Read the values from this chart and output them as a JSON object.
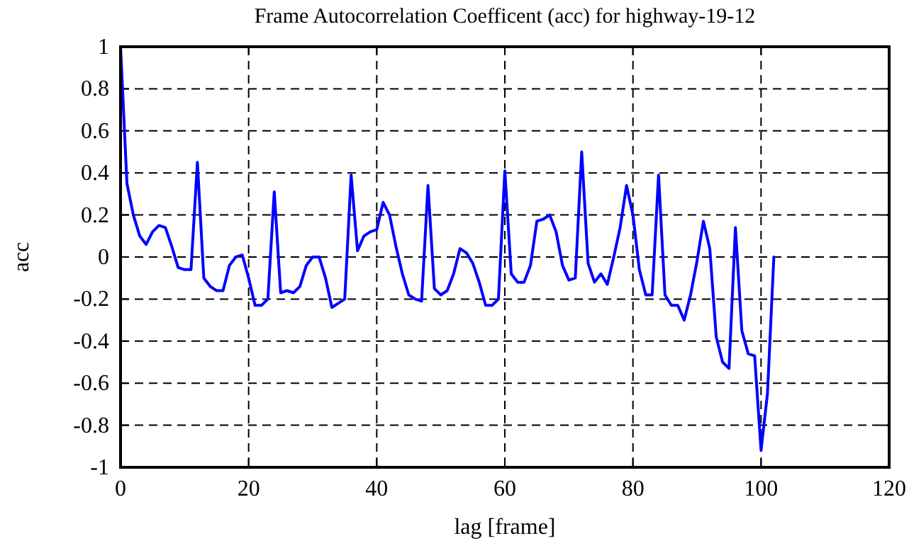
{
  "chart_data": {
    "type": "line",
    "title": "Frame Autocorrelation Coefficent (acc) for highway-19-12",
    "xlabel": "lag [frame]",
    "ylabel": "acc",
    "x": [
      0,
      1,
      2,
      3,
      4,
      5,
      6,
      7,
      8,
      9,
      10,
      11,
      12,
      13,
      14,
      15,
      16,
      17,
      18,
      19,
      20,
      21,
      22,
      23,
      24,
      25,
      26,
      27,
      28,
      29,
      30,
      31,
      32,
      33,
      34,
      35,
      36,
      37,
      38,
      39,
      40,
      41,
      42,
      43,
      44,
      45,
      46,
      47,
      48,
      49,
      50,
      51,
      52,
      53,
      54,
      55,
      56,
      57,
      58,
      59,
      60,
      61,
      62,
      63,
      64,
      65,
      66,
      67,
      68,
      69,
      70,
      71,
      72,
      73,
      74,
      75,
      76,
      77,
      78,
      79,
      80,
      81,
      82,
      83,
      84,
      85,
      86,
      87,
      88,
      89,
      90,
      91,
      92,
      93,
      94,
      95,
      96,
      97,
      98,
      99,
      100,
      101,
      102
    ],
    "series": [
      {
        "color": "#0000ff",
        "values": [
          1,
          0.35,
          0.2,
          0.1,
          0.06,
          0.12,
          0.15,
          0.14,
          0.05,
          -0.05,
          -0.06,
          -0.06,
          0.45,
          -0.1,
          -0.14,
          -0.16,
          -0.16,
          -0.04,
          0,
          0.01,
          -0.1,
          -0.23,
          -0.23,
          -0.2,
          0.31,
          -0.17,
          -0.16,
          -0.17,
          -0.14,
          -0.04,
          0,
          0,
          -0.1,
          -0.24,
          -0.22,
          -0.2,
          0.39,
          0.03,
          0.1,
          0.12,
          0.13,
          0.26,
          0.2,
          0.05,
          -0.08,
          -0.18,
          -0.2,
          -0.21,
          0.34,
          -0.15,
          -0.18,
          -0.16,
          -0.08,
          0.04,
          0.02,
          -0.03,
          -0.12,
          -0.23,
          -0.23,
          -0.2,
          0.41,
          -0.08,
          -0.12,
          -0.12,
          -0.04,
          0.17,
          0.18,
          0.2,
          0.12,
          -0.04,
          -0.11,
          -0.1,
          0.5,
          -0.03,
          -0.12,
          -0.08,
          -0.13,
          0,
          0.14,
          0.34,
          0.2,
          -0.06,
          -0.18,
          -0.18,
          0.39,
          -0.18,
          -0.23,
          -0.23,
          -0.3,
          -0.18,
          -0.02,
          0.17,
          0.04,
          -0.38,
          -0.5,
          -0.53,
          0.14,
          -0.35,
          -0.46,
          -0.47,
          -0.92,
          -0.65,
          0
        ]
      }
    ],
    "xlim": [
      0,
      120
    ],
    "xticks": [
      0,
      20,
      40,
      60,
      80,
      100,
      120
    ],
    "ylim": [
      -1,
      1
    ],
    "yticks": [
      -1,
      -0.8,
      -0.6,
      -0.4,
      -0.2,
      0,
      0.2,
      0.4,
      0.6,
      0.8,
      1
    ],
    "grid": true,
    "line_style": "solid",
    "marker": "none"
  }
}
